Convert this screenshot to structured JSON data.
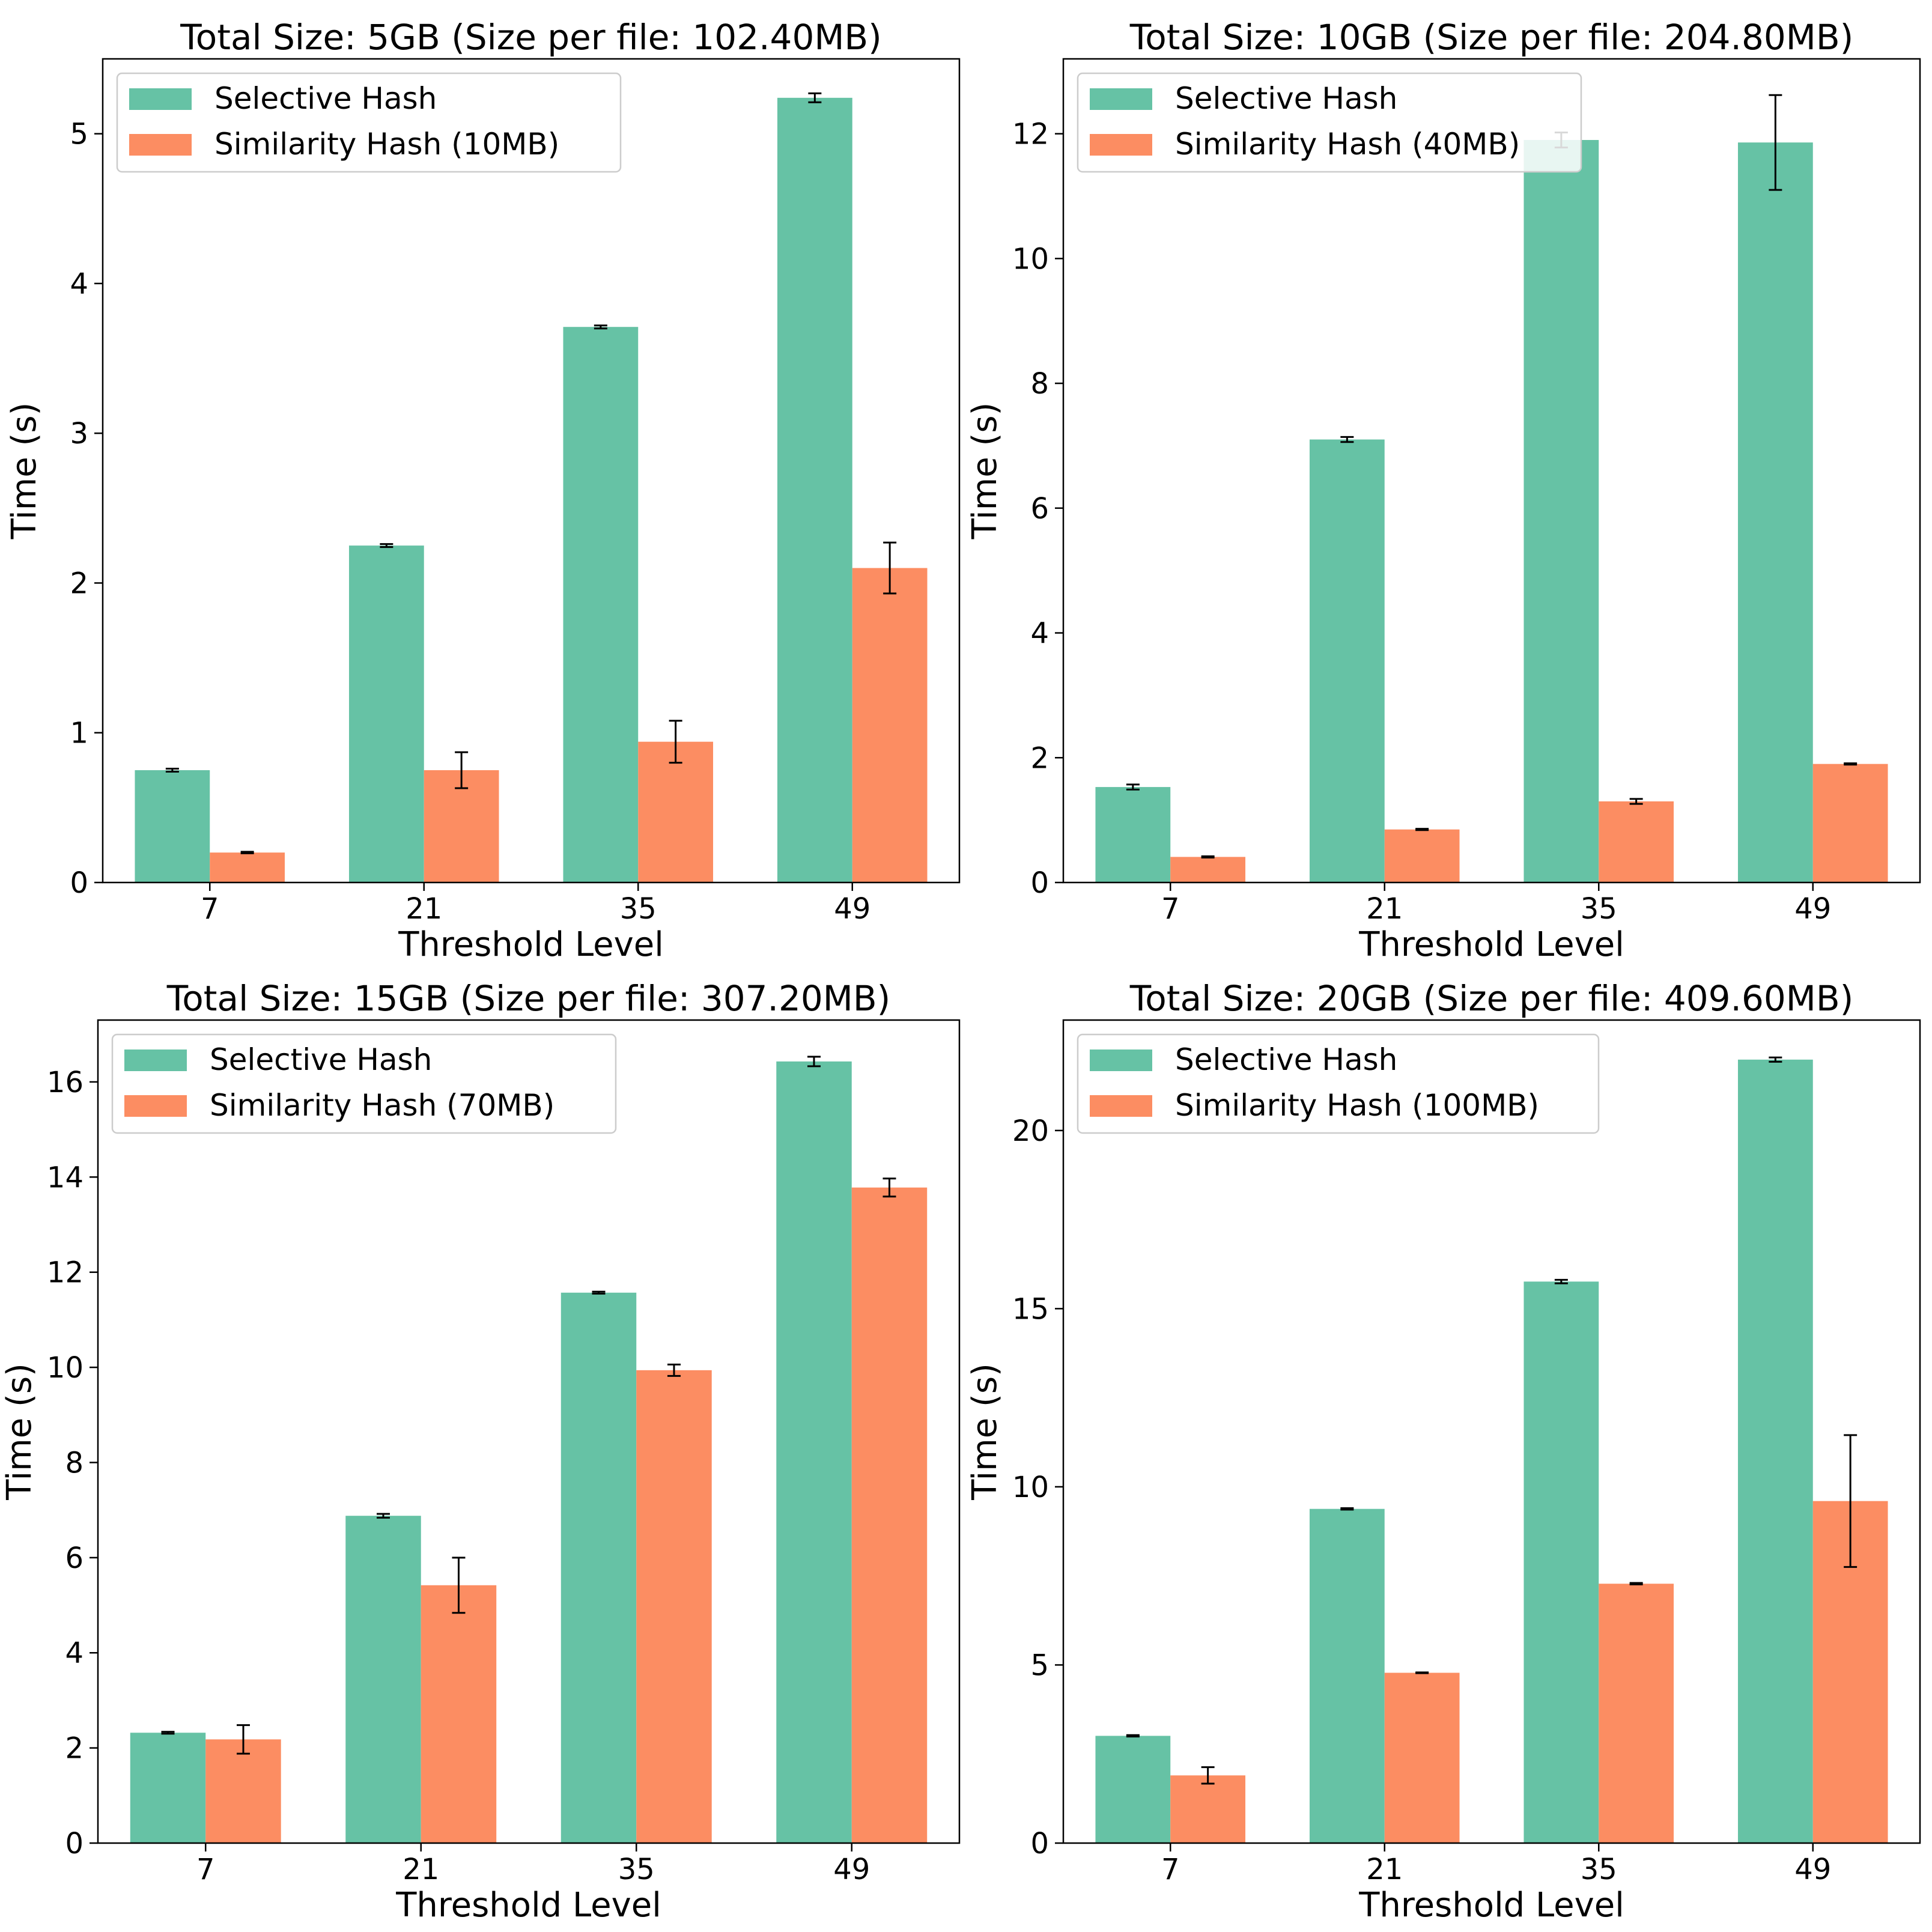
{
  "colors": {
    "selective": "#66c2a5",
    "similarity": "#fc8d62",
    "axis": "#000000",
    "error_bar": "#000000",
    "legend_border": "#cccccc"
  },
  "chart_data": [
    {
      "type": "bar",
      "title": "Total Size: 5GB (Size per file: 102.40MB)",
      "xlabel": "Threshold Level",
      "ylabel": "Time (s)",
      "categories": [
        "7",
        "21",
        "35",
        "49"
      ],
      "ylim": [
        0,
        5.5
      ],
      "yticks": [
        0,
        1,
        2,
        3,
        4,
        5
      ],
      "grid": false,
      "legend_position": "top-left",
      "series": [
        {
          "name": "Selective Hash",
          "values": [
            0.75,
            2.25,
            3.71,
            5.24
          ],
          "errors": [
            0.01,
            0.01,
            0.01,
            0.03
          ]
        },
        {
          "name": "Similarity Hash (10MB)",
          "values": [
            0.2,
            0.75,
            0.94,
            2.1
          ],
          "errors": [
            0.005,
            0.12,
            0.14,
            0.17
          ]
        }
      ]
    },
    {
      "type": "bar",
      "title": "Total Size: 10GB (Size per file: 204.80MB)",
      "xlabel": "Threshold Level",
      "ylabel": "Time (s)",
      "categories": [
        "7",
        "21",
        "35",
        "49"
      ],
      "ylim": [
        0,
        13.2
      ],
      "yticks": [
        0,
        2,
        4,
        6,
        8,
        10,
        12
      ],
      "grid": false,
      "legend_position": "top-left",
      "series": [
        {
          "name": "Selective Hash",
          "values": [
            1.53,
            7.1,
            11.9,
            11.86
          ],
          "errors": [
            0.04,
            0.04,
            0.12,
            0.76
          ]
        },
        {
          "name": "Similarity Hash (40MB)",
          "values": [
            0.41,
            0.85,
            1.3,
            1.9
          ],
          "errors": [
            0.01,
            0.01,
            0.04,
            0.01
          ]
        }
      ]
    },
    {
      "type": "bar",
      "title": "Total Size: 15GB (Size per file: 307.20MB)",
      "xlabel": "Threshold Level",
      "ylabel": "Time (s)",
      "categories": [
        "7",
        "21",
        "35",
        "49"
      ],
      "ylim": [
        0,
        17.3
      ],
      "yticks": [
        0,
        2,
        4,
        6,
        8,
        10,
        12,
        14,
        16
      ],
      "grid": false,
      "legend_position": "top-left",
      "series": [
        {
          "name": "Selective Hash",
          "values": [
            2.32,
            6.88,
            11.57,
            16.43
          ],
          "errors": [
            0.02,
            0.04,
            0.02,
            0.1
          ]
        },
        {
          "name": "Similarity Hash (70MB)",
          "values": [
            2.18,
            5.42,
            9.94,
            13.78
          ],
          "errors": [
            0.3,
            0.58,
            0.12,
            0.19
          ]
        }
      ]
    },
    {
      "type": "bar",
      "title": "Total Size: 20GB (Size per file: 409.60MB)",
      "xlabel": "Threshold Level",
      "ylabel": "Time (s)",
      "categories": [
        "7",
        "21",
        "35",
        "49"
      ],
      "ylim": [
        0,
        23.1
      ],
      "yticks": [
        0,
        5,
        10,
        15,
        20
      ],
      "grid": false,
      "legend_position": "top-left",
      "series": [
        {
          "name": "Selective Hash",
          "values": [
            3.01,
            9.38,
            15.76,
            21.99
          ],
          "errors": [
            0.02,
            0.02,
            0.05,
            0.06
          ]
        },
        {
          "name": "Similarity Hash (100MB)",
          "values": [
            1.9,
            4.78,
            7.28,
            9.6
          ],
          "errors": [
            0.23,
            0.01,
            0.02,
            1.85
          ]
        }
      ]
    }
  ]
}
